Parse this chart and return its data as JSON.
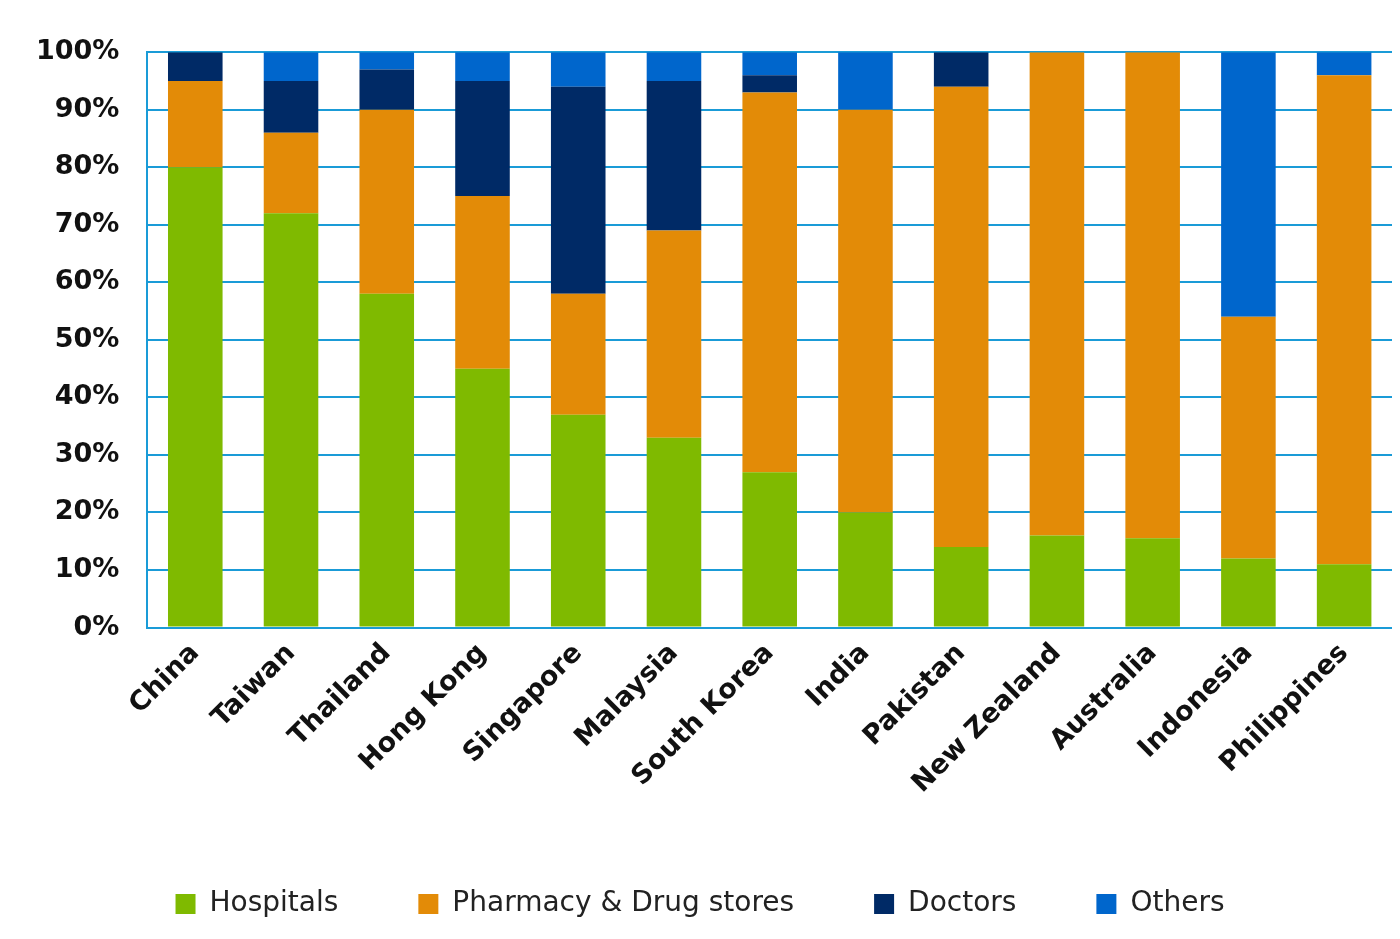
{
  "chart_data": {
    "type": "bar",
    "stacked": true,
    "categories": [
      "China",
      "Taiwan",
      "Thailand",
      "Hong Kong",
      "Singapore",
      "Malaysia",
      "South Korea",
      "India",
      "Pakistan",
      "New Zealand",
      "Australia",
      "Indonesia",
      "Philippines"
    ],
    "series": [
      {
        "name": "Hospitals",
        "color": "#7fba00",
        "values": [
          80,
          72,
          58,
          45,
          37,
          33,
          27,
          20,
          14,
          16,
          15.5,
          12,
          11
        ]
      },
      {
        "name": "Pharmacy & Drug stores",
        "color": "#e38b07",
        "values": [
          15,
          14,
          32,
          30,
          21,
          36,
          66,
          70,
          80,
          84,
          84.5,
          42,
          85
        ]
      },
      {
        "name": "Doctors",
        "color": "#002a66",
        "values": [
          5,
          9,
          7,
          20,
          36,
          26,
          3,
          0,
          6,
          0,
          0,
          0,
          0
        ]
      },
      {
        "name": "Others",
        "color": "#0066cc",
        "values": [
          0,
          5,
          3,
          5,
          6,
          5,
          4,
          10,
          0,
          0,
          0,
          46,
          4
        ]
      }
    ],
    "ylim": [
      0,
      100
    ],
    "yticks": [
      {
        "value": 0,
        "label": "0%"
      },
      {
        "value": 10,
        "label": "10%"
      },
      {
        "value": 20,
        "label": "20%"
      },
      {
        "value": 30,
        "label": "30%"
      },
      {
        "value": 40,
        "label": "40%"
      },
      {
        "value": 50,
        "label": "50%"
      },
      {
        "value": 60,
        "label": "60%"
      },
      {
        "value": 70,
        "label": "70%"
      },
      {
        "value": 80,
        "label": "80%"
      },
      {
        "value": 90,
        "label": "90%"
      },
      {
        "value": 100,
        "label": "100%"
      }
    ],
    "grid": "y",
    "legend": "bottom"
  }
}
